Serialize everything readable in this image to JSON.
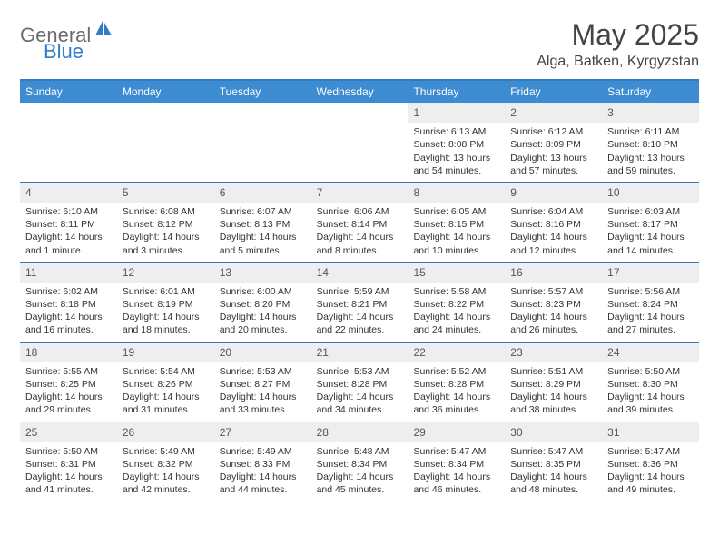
{
  "brand": {
    "part1": "General",
    "part2": "Blue"
  },
  "title": "May 2025",
  "location": "Alga, Batken, Kyrgyzstan",
  "style": {
    "header_bg": "#3d8bd0",
    "border_color": "#2f7dc4",
    "daynum_bg": "#eeeeee",
    "text_color": "#333333",
    "brand_gray": "#6b6b6b",
    "brand_blue": "#2f7dc4",
    "page_bg": "#ffffff",
    "title_fontsize": 32,
    "location_fontsize": 16,
    "weekday_fontsize": 12,
    "cell_fontsize": 10.5
  },
  "weekdays": [
    "Sunday",
    "Monday",
    "Tuesday",
    "Wednesday",
    "Thursday",
    "Friday",
    "Saturday"
  ],
  "weeks": [
    [
      {
        "n": "",
        "sr": "",
        "ss": "",
        "dl": ""
      },
      {
        "n": "",
        "sr": "",
        "ss": "",
        "dl": ""
      },
      {
        "n": "",
        "sr": "",
        "ss": "",
        "dl": ""
      },
      {
        "n": "",
        "sr": "",
        "ss": "",
        "dl": ""
      },
      {
        "n": "1",
        "sr": "Sunrise: 6:13 AM",
        "ss": "Sunset: 8:08 PM",
        "dl": "Daylight: 13 hours and 54 minutes."
      },
      {
        "n": "2",
        "sr": "Sunrise: 6:12 AM",
        "ss": "Sunset: 8:09 PM",
        "dl": "Daylight: 13 hours and 57 minutes."
      },
      {
        "n": "3",
        "sr": "Sunrise: 6:11 AM",
        "ss": "Sunset: 8:10 PM",
        "dl": "Daylight: 13 hours and 59 minutes."
      }
    ],
    [
      {
        "n": "4",
        "sr": "Sunrise: 6:10 AM",
        "ss": "Sunset: 8:11 PM",
        "dl": "Daylight: 14 hours and 1 minute."
      },
      {
        "n": "5",
        "sr": "Sunrise: 6:08 AM",
        "ss": "Sunset: 8:12 PM",
        "dl": "Daylight: 14 hours and 3 minutes."
      },
      {
        "n": "6",
        "sr": "Sunrise: 6:07 AM",
        "ss": "Sunset: 8:13 PM",
        "dl": "Daylight: 14 hours and 5 minutes."
      },
      {
        "n": "7",
        "sr": "Sunrise: 6:06 AM",
        "ss": "Sunset: 8:14 PM",
        "dl": "Daylight: 14 hours and 8 minutes."
      },
      {
        "n": "8",
        "sr": "Sunrise: 6:05 AM",
        "ss": "Sunset: 8:15 PM",
        "dl": "Daylight: 14 hours and 10 minutes."
      },
      {
        "n": "9",
        "sr": "Sunrise: 6:04 AM",
        "ss": "Sunset: 8:16 PM",
        "dl": "Daylight: 14 hours and 12 minutes."
      },
      {
        "n": "10",
        "sr": "Sunrise: 6:03 AM",
        "ss": "Sunset: 8:17 PM",
        "dl": "Daylight: 14 hours and 14 minutes."
      }
    ],
    [
      {
        "n": "11",
        "sr": "Sunrise: 6:02 AM",
        "ss": "Sunset: 8:18 PM",
        "dl": "Daylight: 14 hours and 16 minutes."
      },
      {
        "n": "12",
        "sr": "Sunrise: 6:01 AM",
        "ss": "Sunset: 8:19 PM",
        "dl": "Daylight: 14 hours and 18 minutes."
      },
      {
        "n": "13",
        "sr": "Sunrise: 6:00 AM",
        "ss": "Sunset: 8:20 PM",
        "dl": "Daylight: 14 hours and 20 minutes."
      },
      {
        "n": "14",
        "sr": "Sunrise: 5:59 AM",
        "ss": "Sunset: 8:21 PM",
        "dl": "Daylight: 14 hours and 22 minutes."
      },
      {
        "n": "15",
        "sr": "Sunrise: 5:58 AM",
        "ss": "Sunset: 8:22 PM",
        "dl": "Daylight: 14 hours and 24 minutes."
      },
      {
        "n": "16",
        "sr": "Sunrise: 5:57 AM",
        "ss": "Sunset: 8:23 PM",
        "dl": "Daylight: 14 hours and 26 minutes."
      },
      {
        "n": "17",
        "sr": "Sunrise: 5:56 AM",
        "ss": "Sunset: 8:24 PM",
        "dl": "Daylight: 14 hours and 27 minutes."
      }
    ],
    [
      {
        "n": "18",
        "sr": "Sunrise: 5:55 AM",
        "ss": "Sunset: 8:25 PM",
        "dl": "Daylight: 14 hours and 29 minutes."
      },
      {
        "n": "19",
        "sr": "Sunrise: 5:54 AM",
        "ss": "Sunset: 8:26 PM",
        "dl": "Daylight: 14 hours and 31 minutes."
      },
      {
        "n": "20",
        "sr": "Sunrise: 5:53 AM",
        "ss": "Sunset: 8:27 PM",
        "dl": "Daylight: 14 hours and 33 minutes."
      },
      {
        "n": "21",
        "sr": "Sunrise: 5:53 AM",
        "ss": "Sunset: 8:28 PM",
        "dl": "Daylight: 14 hours and 34 minutes."
      },
      {
        "n": "22",
        "sr": "Sunrise: 5:52 AM",
        "ss": "Sunset: 8:28 PM",
        "dl": "Daylight: 14 hours and 36 minutes."
      },
      {
        "n": "23",
        "sr": "Sunrise: 5:51 AM",
        "ss": "Sunset: 8:29 PM",
        "dl": "Daylight: 14 hours and 38 minutes."
      },
      {
        "n": "24",
        "sr": "Sunrise: 5:50 AM",
        "ss": "Sunset: 8:30 PM",
        "dl": "Daylight: 14 hours and 39 minutes."
      }
    ],
    [
      {
        "n": "25",
        "sr": "Sunrise: 5:50 AM",
        "ss": "Sunset: 8:31 PM",
        "dl": "Daylight: 14 hours and 41 minutes."
      },
      {
        "n": "26",
        "sr": "Sunrise: 5:49 AM",
        "ss": "Sunset: 8:32 PM",
        "dl": "Daylight: 14 hours and 42 minutes."
      },
      {
        "n": "27",
        "sr": "Sunrise: 5:49 AM",
        "ss": "Sunset: 8:33 PM",
        "dl": "Daylight: 14 hours and 44 minutes."
      },
      {
        "n": "28",
        "sr": "Sunrise: 5:48 AM",
        "ss": "Sunset: 8:34 PM",
        "dl": "Daylight: 14 hours and 45 minutes."
      },
      {
        "n": "29",
        "sr": "Sunrise: 5:47 AM",
        "ss": "Sunset: 8:34 PM",
        "dl": "Daylight: 14 hours and 46 minutes."
      },
      {
        "n": "30",
        "sr": "Sunrise: 5:47 AM",
        "ss": "Sunset: 8:35 PM",
        "dl": "Daylight: 14 hours and 48 minutes."
      },
      {
        "n": "31",
        "sr": "Sunrise: 5:47 AM",
        "ss": "Sunset: 8:36 PM",
        "dl": "Daylight: 14 hours and 49 minutes."
      }
    ]
  ]
}
